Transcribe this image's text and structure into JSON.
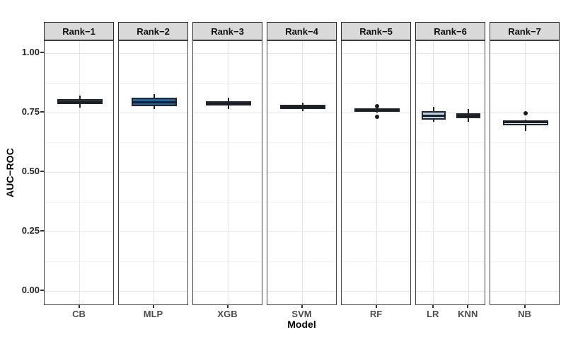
{
  "chart_data": {
    "type": "boxplot",
    "title": "",
    "xlabel": "Model",
    "ylabel": "AUC−ROC",
    "y_tick_labels": [
      "1.00",
      "0.75",
      "0.50",
      "0.25",
      "0.00"
    ],
    "y_tick_values": [
      1.0,
      0.75,
      0.5,
      0.25,
      0.0
    ],
    "y_minor_values": [
      0.875,
      0.625,
      0.375,
      0.125
    ],
    "ylim": [
      -0.06,
      1.05
    ],
    "grid": "on",
    "legend": "none",
    "colors": {
      "strip_background": "#d9d9d9",
      "panel_border": "#454545",
      "box_border": "#23272b",
      "line": "#1c1f23",
      "dark_fill": "#3a4048",
      "medium_blue_fill": "#2d6290",
      "light_blue_fill": "#b5d0e7",
      "pale_blue_fill": "#d4e4f1"
    },
    "facets": [
      {
        "label": "Rank−1",
        "models": [
          {
            "name": "CB",
            "fill": "#3a4048",
            "whisker_low": 0.772,
            "q1": 0.786,
            "median": 0.796,
            "q3": 0.806,
            "whisker_high": 0.821,
            "outliers": []
          }
        ]
      },
      {
        "label": "Rank−2",
        "models": [
          {
            "name": "MLP",
            "fill": "#2d6290",
            "whisker_low": 0.765,
            "q1": 0.778,
            "median": 0.795,
            "q3": 0.812,
            "whisker_high": 0.828,
            "outliers": []
          }
        ]
      },
      {
        "label": "Rank−3",
        "models": [
          {
            "name": "XGB",
            "fill": "#3a4048",
            "whisker_low": 0.766,
            "q1": 0.781,
            "median": 0.79,
            "q3": 0.798,
            "whisker_high": 0.812,
            "outliers": []
          }
        ]
      },
      {
        "label": "Rank−4",
        "models": [
          {
            "name": "SVM",
            "fill": "#3a4048",
            "whisker_low": 0.755,
            "q1": 0.766,
            "median": 0.775,
            "q3": 0.783,
            "whisker_high": 0.793,
            "outliers": []
          }
        ]
      },
      {
        "label": "Rank−5",
        "models": [
          {
            "name": "RF",
            "fill": "#3a4048",
            "whisker_low": 0.749,
            "q1": 0.754,
            "median": 0.761,
            "q3": 0.768,
            "whisker_high": 0.771,
            "outliers": [
              0.776,
              0.733
            ]
          }
        ]
      },
      {
        "label": "Rank−6",
        "models": [
          {
            "name": "LR",
            "fill": "#b5d0e7",
            "whisker_low": 0.712,
            "q1": 0.721,
            "median": 0.738,
            "q3": 0.756,
            "whisker_high": 0.774,
            "outliers": []
          },
          {
            "name": "KNN",
            "fill": "#b5d0e7",
            "whisker_low": 0.712,
            "q1": 0.727,
            "median": 0.737,
            "q3": 0.747,
            "whisker_high": 0.765,
            "outliers": []
          }
        ]
      },
      {
        "label": "Rank−7",
        "models": [
          {
            "name": "NB",
            "fill": "#d4e4f1",
            "whisker_low": 0.674,
            "q1": 0.697,
            "median": 0.712,
            "q3": 0.718,
            "whisker_high": 0.721,
            "outliers": [
              0.748
            ]
          }
        ]
      }
    ]
  }
}
